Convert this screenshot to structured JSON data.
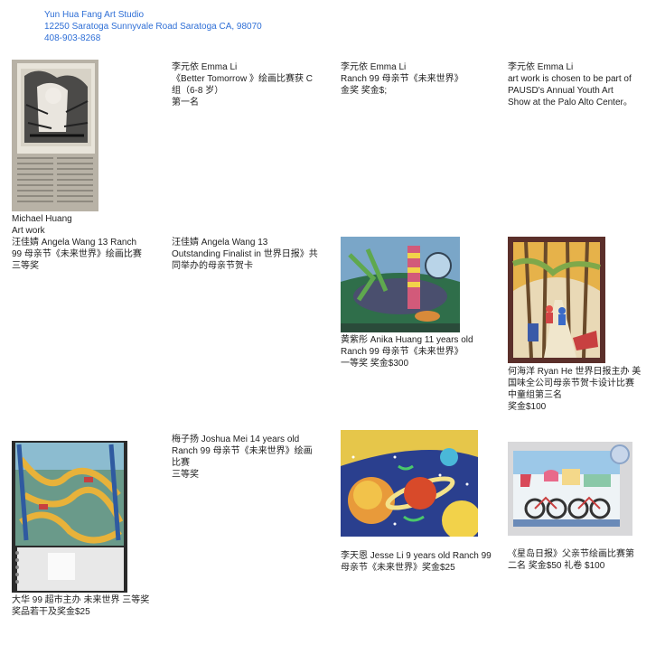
{
  "studio": {
    "name": "Yun Hua Fang Art Studio",
    "address": "12250 Saratoga Sunnyvale Road Saratoga CA, 98070",
    "phone": "408-903-8268"
  },
  "entries": {
    "michael": {
      "line1": "Michael Huang",
      "line2": "Art work"
    },
    "emma1": {
      "line1": "李元依 Emma Li",
      "line2": "《Better Tomorrow 》绘画比赛获 C",
      "line3": "组（6-8 岁）",
      "line4": "第一名"
    },
    "emma2": {
      "line1": "李元依 Emma Li",
      "line2": "Ranch 99 母亲节《未来世界》",
      "line3": "金奖 奖金$;"
    },
    "emma3": {
      "line1": "李元依 Emma Li",
      "line2": "art work is chosen to be part of",
      "line3": "PAUSD's Annual Youth Art",
      "line4": "Show at the Palo Alto Center。"
    },
    "angela1": {
      "line1": "汪佳婧 Angela Wang 13 Ranch",
      "line2": "99 母亲节《未来世界》绘画比赛",
      "line3": "三等奖"
    },
    "angela2": {
      "line1": "汪佳婧 Angela Wang 13",
      "line2": "Outstanding Finalist in 世界日报》共",
      "line3": "同举办的母亲节贺卡"
    },
    "anika": {
      "line1": "黄紫彤 Anika Huang 11 years old",
      "line2": "Ranch 99 母亲节《未来世界》",
      "line3": "一等奖 奖金$300"
    },
    "ryan": {
      "line1": "何海洋 Ryan He 世界日报主办 美",
      "line2": "国味全公司母亲节贺卡设计比赛",
      "line3": "中童组第三名",
      "line4": "奖金$100"
    },
    "joshua": {
      "line1": "梅子扬 Joshua Mei 14 years old",
      "line2": "Ranch 99 母亲节《未来世界》绘画",
      "line3": "比赛",
      "line4": "三等奖"
    },
    "dahua": {
      "line1": "大华 99 超市主办 未来世界 三等奖",
      "line2": "奖品若干及奖金$25"
    },
    "jesse": {
      "line1": "李天恩 Jesse Li 9 years old Ranch 99",
      "line2": "母亲节《未来世界》奖金$25"
    },
    "xingdao": {
      "line1": "《星岛日报》父亲节绘画比赛第",
      "line2": "二名 奖金$50 礼卷 $100"
    }
  },
  "colors": {
    "header": "#2f6fd6",
    "text": "#222222",
    "background": "#ffffff"
  }
}
